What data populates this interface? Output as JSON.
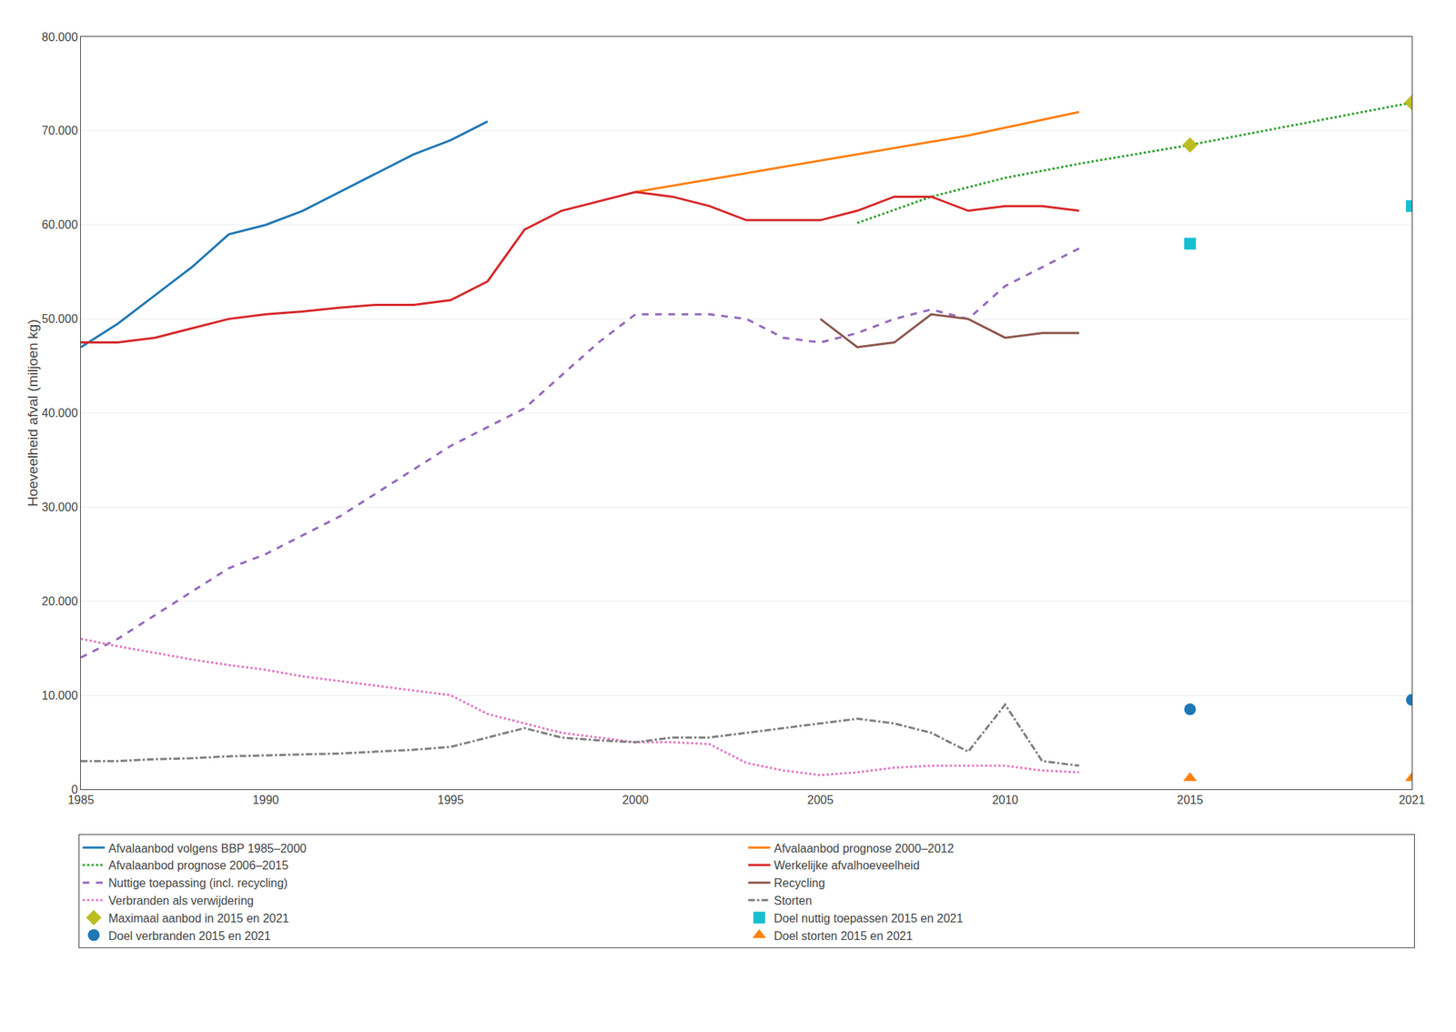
{
  "chart_data": {
    "type": "line",
    "ylabel": "Hoeveelheid afval (miljoen kg)",
    "xlim": [
      1985,
      2021
    ],
    "xticks": [
      1985,
      1990,
      1995,
      2000,
      2005,
      2010,
      2015,
      2021
    ],
    "ylim": [
      0,
      80000
    ],
    "yticks": [
      0,
      {
        "value": 10000,
        "label": "10.000"
      },
      {
        "value": 20000,
        "label": "20.000"
      },
      {
        "value": 30000,
        "label": "30.000"
      },
      {
        "value": 40000,
        "label": "40.000"
      },
      {
        "value": 50000,
        "label": "50.000"
      },
      {
        "value": 60000,
        "label": "60.000"
      },
      {
        "value": 70000,
        "label": "70.000"
      },
      {
        "value": 80000,
        "label": "80.000"
      }
    ],
    "grid": "y",
    "legend": "bottom",
    "series": [
      {
        "name": "Afvalaanbod volgens BBP 1985–2000",
        "type": "line",
        "line_style": "solid",
        "x": [
          1985,
          1986,
          1987,
          1988,
          1989,
          1990,
          1991,
          1992,
          1993,
          1994,
          1995,
          1996
        ],
        "values": [
          47000,
          49500,
          52500,
          55500,
          59000,
          60000,
          61500,
          63500,
          65500,
          67500,
          69000,
          71000
        ]
      },
      {
        "name": "Afvalaanbod prognose 2000–2012",
        "type": "line",
        "line_style": "solid",
        "x": [
          2000,
          2003,
          2006,
          2009,
          2012
        ],
        "values": [
          63500,
          65500,
          67500,
          69500,
          72000
        ]
      },
      {
        "name": "Afvalaanbod prognose 2006–2015",
        "type": "line",
        "line_style": "dotted",
        "x": [
          2006,
          2008,
          2010,
          2012,
          2015,
          2021
        ],
        "values": [
          60200,
          63000,
          65000,
          66500,
          68500,
          73000
        ]
      },
      {
        "name": "Werkelijke afvalhoeveelheid",
        "type": "line",
        "line_style": "solid",
        "x": [
          1985,
          1986,
          1987,
          1988,
          1989,
          1990,
          1991,
          1992,
          1993,
          1994,
          1995,
          1996,
          1997,
          1998,
          1999,
          2000,
          2001,
          2002,
          2003,
          2004,
          2005,
          2006,
          2007,
          2008,
          2009,
          2010,
          2011,
          2012
        ],
        "values": [
          47500,
          47500,
          48000,
          49000,
          50000,
          50500,
          50800,
          51200,
          51500,
          51500,
          52000,
          54000,
          59500,
          61500,
          62500,
          63500,
          63000,
          62000,
          60500,
          60500,
          60500,
          61500,
          63000,
          63000,
          61500,
          62000,
          62000,
          61500
        ]
      },
      {
        "name": "Nuttige toepassing (incl. recycling)",
        "type": "line",
        "line_style": "dashed",
        "x": [
          1985,
          1986,
          1987,
          1988,
          1989,
          1990,
          1991,
          1992,
          1993,
          1994,
          1995,
          1996,
          1997,
          1998,
          1999,
          2000,
          2001,
          2002,
          2003,
          2004,
          2005,
          2006,
          2007,
          2008,
          2009,
          2010,
          2011,
          2012
        ],
        "values": [
          14000,
          16000,
          18500,
          21000,
          23500,
          25000,
          27000,
          29000,
          31500,
          34000,
          36500,
          38500,
          40500,
          44000,
          47500,
          50500,
          50500,
          50500,
          50000,
          48000,
          47500,
          48500,
          50000,
          51000,
          50000,
          53500,
          55500,
          57500
        ]
      },
      {
        "name": "Recycling",
        "type": "line",
        "line_style": "solid",
        "x": [
          2005,
          2006,
          2007,
          2008,
          2009,
          2010,
          2011,
          2012
        ],
        "values": [
          50000,
          47000,
          47500,
          50500,
          50000,
          48000,
          48500,
          48500
        ]
      },
      {
        "name": "Verbranden als verwijdering",
        "type": "line",
        "line_style": "dotted",
        "x": [
          1985,
          1986,
          1987,
          1988,
          1989,
          1990,
          1991,
          1992,
          1993,
          1994,
          1995,
          1996,
          1997,
          1998,
          1999,
          2000,
          2001,
          2002,
          2003,
          2004,
          2005,
          2006,
          2007,
          2008,
          2009,
          2010,
          2011,
          2012
        ],
        "values": [
          16000,
          15200,
          14500,
          13800,
          13200,
          12700,
          12000,
          11500,
          11000,
          10500,
          10000,
          8000,
          7000,
          6000,
          5500,
          5000,
          5000,
          4800,
          2800,
          2000,
          1500,
          1800,
          2300,
          2500,
          2500,
          2500,
          2000,
          1800
        ]
      },
      {
        "name": "Storten",
        "type": "line",
        "line_style": "dashdot",
        "x": [
          1985,
          1986,
          1987,
          1988,
          1989,
          1990,
          1991,
          1992,
          1993,
          1994,
          1995,
          1996,
          1997,
          1998,
          1999,
          2000,
          2001,
          2002,
          2003,
          2004,
          2005,
          2006,
          2007,
          2008,
          2009,
          2010,
          2011,
          2012
        ],
        "values": [
          3000,
          3000,
          3200,
          3300,
          3500,
          3600,
          3700,
          3800,
          4000,
          4200,
          4500,
          5500,
          6500,
          5500,
          5200,
          5000,
          5500,
          5500,
          6000,
          6500,
          7000,
          7500,
          7000,
          6000,
          4000,
          9000,
          3000,
          2500
        ]
      },
      {
        "name": "Maximaal aanbod in 2015 en 2021",
        "type": "scatter",
        "marker": "diamond",
        "x": [
          2015,
          2021
        ],
        "values": [
          68500,
          73000
        ]
      },
      {
        "name": "Doel nuttig toepassen 2015 en 2021",
        "type": "scatter",
        "marker": "square",
        "x": [
          2015,
          2021
        ],
        "values": [
          58000,
          62000
        ]
      },
      {
        "name": "Doel verbranden 2015 en 2021",
        "type": "scatter",
        "marker": "circle",
        "x": [
          2015,
          2021
        ],
        "values": [
          8500,
          9500
        ]
      },
      {
        "name": "Doel storten 2015 en 2021",
        "type": "scatter",
        "marker": "triangle",
        "x": [
          2015,
          2021
        ],
        "values": [
          1200,
          1200
        ]
      }
    ]
  }
}
